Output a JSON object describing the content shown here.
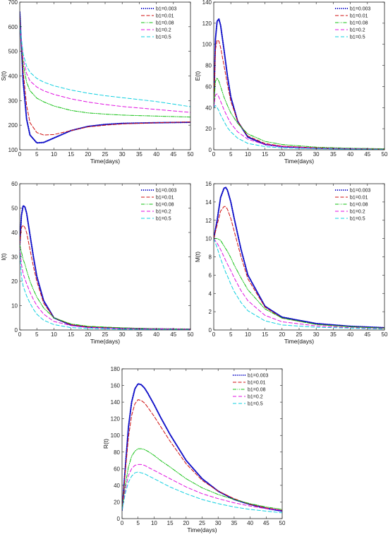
{
  "chart_data": [
    {
      "id": "S",
      "type": "line",
      "xlabel": "Time(days)",
      "ylabel": "S(t)",
      "xlim": [
        0,
        50
      ],
      "ylim": [
        100,
        700
      ],
      "xticks": [
        0,
        5,
        10,
        15,
        20,
        25,
        30,
        35,
        40,
        45,
        50
      ],
      "yticks": [
        100,
        200,
        300,
        400,
        500,
        600,
        700
      ],
      "legend_position": "top-right",
      "x": [
        0,
        1,
        2,
        3,
        5,
        7,
        10,
        15,
        20,
        25,
        30,
        40,
        50
      ],
      "series": [
        {
          "name": "b1=0.003",
          "color": "#1010c8",
          "dash": "1.2,1.6",
          "width": 2,
          "values": [
            660,
            380,
            225,
            160,
            128,
            130,
            148,
            178,
            195,
            203,
            207,
            210,
            212
          ]
        },
        {
          "name": "b1=0.01",
          "color": "#d01010",
          "dash": "5,2.5",
          "width": 1,
          "values": [
            640,
            420,
            280,
            210,
            170,
            160,
            162,
            178,
            193,
            200,
            205,
            210,
            213
          ]
        },
        {
          "name": "b1=0.08",
          "color": "#10c010",
          "dash": "5,1.5,1,1.5,1,1.5",
          "width": 1,
          "values": [
            630,
            450,
            375,
            340,
            310,
            295,
            278,
            260,
            250,
            245,
            241,
            237,
            233
          ]
        },
        {
          "name": "b1=0.2",
          "color": "#e010e0",
          "dash": "5,3",
          "width": 1,
          "values": [
            620,
            470,
            410,
            380,
            355,
            340,
            325,
            307,
            294,
            284,
            276,
            264,
            252
          ]
        },
        {
          "name": "b1=0.5",
          "color": "#10d0e0",
          "dash": "5,3",
          "width": 1,
          "values": [
            610,
            490,
            440,
            415,
            390,
            375,
            360,
            343,
            330,
            320,
            312,
            296,
            275
          ]
        }
      ]
    },
    {
      "id": "E",
      "type": "line",
      "xlabel": "Time(days)",
      "ylabel": "E(t)",
      "xlim": [
        0,
        50
      ],
      "ylim": [
        0,
        140
      ],
      "xticks": [
        0,
        5,
        10,
        15,
        20,
        25,
        30,
        35,
        40,
        45,
        50
      ],
      "yticks": [
        0,
        20,
        40,
        60,
        80,
        100,
        120,
        140
      ],
      "legend_position": "top-right",
      "x": [
        0,
        0.5,
        1,
        1.5,
        2,
        3,
        4,
        5,
        7,
        10,
        15,
        20,
        30,
        40,
        50
      ],
      "series": [
        {
          "name": "b1=0.003",
          "color": "#1010c8",
          "dash": "1.2,1.6",
          "width": 2,
          "values": [
            40,
            105,
            122,
            124,
            118,
            95,
            70,
            50,
            27,
            12,
            5,
            3,
            1.5,
            1,
            0.5
          ]
        },
        {
          "name": "b1=0.01",
          "color": "#d01010",
          "dash": "5,2.5",
          "width": 1,
          "values": [
            40,
            95,
            104,
            103,
            97,
            80,
            62,
            46,
            27,
            13,
            6,
            3.5,
            1.8,
            1,
            0.5
          ]
        },
        {
          "name": "b1=0.08",
          "color": "#10c010",
          "dash": "5,1.5,1,1.5,1,1.5",
          "width": 1,
          "values": [
            40,
            65,
            68,
            65,
            60,
            50,
            42,
            35,
            25,
            15,
            8,
            5,
            2.5,
            1.5,
            1
          ]
        },
        {
          "name": "b1=0.2",
          "color": "#e010e0",
          "dash": "5,3",
          "width": 1,
          "values": [
            40,
            52,
            53,
            50,
            46,
            38,
            31,
            25,
            17,
            10,
            5,
            3,
            1.5,
            1,
            0.5
          ]
        },
        {
          "name": "b1=0.5",
          "color": "#10d0e0",
          "dash": "5,3",
          "width": 1,
          "values": [
            40,
            42,
            40,
            37,
            33,
            27,
            21,
            17,
            11,
            6,
            3,
            1.8,
            1,
            0.5,
            0.3
          ]
        }
      ]
    },
    {
      "id": "I",
      "type": "line",
      "xlabel": "Time(days)",
      "ylabel": "I(t)",
      "xlim": [
        0,
        50
      ],
      "ylim": [
        0,
        60
      ],
      "xticks": [
        0,
        5,
        10,
        15,
        20,
        25,
        30,
        35,
        40,
        45,
        50
      ],
      "yticks": [
        0,
        10,
        20,
        30,
        40,
        50,
        60
      ],
      "legend_position": "top-right",
      "x": [
        0,
        0.5,
        1,
        1.5,
        2,
        3,
        4,
        5,
        7,
        10,
        15,
        20,
        30,
        40,
        50
      ],
      "series": [
        {
          "name": "b1=0.003",
          "color": "#1010c8",
          "dash": "1.2,1.6",
          "width": 2,
          "values": [
            35,
            47,
            51,
            50.5,
            48,
            39,
            30,
            22,
            12,
            5,
            2,
            1.2,
            0.7,
            0.4,
            0.3
          ]
        },
        {
          "name": "b1=0.01",
          "color": "#d01010",
          "dash": "5,2.5",
          "width": 1,
          "values": [
            35,
            42,
            43,
            42,
            40,
            33,
            26,
            20,
            11,
            5,
            2.2,
            1.3,
            0.8,
            0.5,
            0.3
          ]
        },
        {
          "name": "b1=0.08",
          "color": "#10c010",
          "dash": "5,1.5,1,1.5,1,1.5",
          "width": 1,
          "values": [
            35,
            32,
            29,
            27,
            24.5,
            20,
            16.5,
            13.5,
            9,
            5,
            2.5,
            1.5,
            0.9,
            0.5,
            0.4
          ]
        },
        {
          "name": "b1=0.2",
          "color": "#e010e0",
          "dash": "5,3",
          "width": 1,
          "values": [
            34,
            27,
            23,
            21,
            19,
            15.5,
            12.5,
            10,
            6.5,
            3.5,
            1.8,
            1,
            0.6,
            0.4,
            0.3
          ]
        },
        {
          "name": "b1=0.5",
          "color": "#10d0e0",
          "dash": "5,3",
          "width": 1,
          "values": [
            33,
            22,
            18,
            16,
            14,
            11,
            8.5,
            6.5,
            4,
            2.2,
            1,
            0.6,
            0.3,
            0.2,
            0.1
          ]
        }
      ]
    },
    {
      "id": "M",
      "type": "line",
      "xlabel": "Time(days)",
      "ylabel": "M(t)",
      "xlim": [
        0,
        50
      ],
      "ylim": [
        0,
        16
      ],
      "xticks": [
        0,
        5,
        10,
        15,
        20,
        25,
        30,
        35,
        40,
        45,
        50
      ],
      "yticks": [
        0,
        2,
        4,
        6,
        8,
        10,
        12,
        14,
        16
      ],
      "legend_position": "top-right",
      "x": [
        0,
        1,
        2,
        3,
        3.5,
        4,
        5,
        6,
        8,
        10,
        15,
        20,
        30,
        40,
        50
      ],
      "series": [
        {
          "name": "b1=0.003",
          "color": "#1010c8",
          "dash": "1.2,1.6",
          "width": 2,
          "values": [
            10,
            12,
            14.5,
            15.5,
            15.6,
            15.3,
            14,
            12.2,
            8.8,
            6,
            2.6,
            1.4,
            0.7,
            0.4,
            0.25
          ]
        },
        {
          "name": "b1=0.01",
          "color": "#d01010",
          "dash": "5,2.5",
          "width": 1,
          "values": [
            10,
            11.5,
            13,
            13.5,
            13.5,
            13.2,
            12.2,
            10.8,
            8,
            5.6,
            2.5,
            1.3,
            0.6,
            0.35,
            0.2
          ]
        },
        {
          "name": "b1=0.08",
          "color": "#10c010",
          "dash": "5,1.5,1,1.5,1,1.5",
          "width": 1,
          "values": [
            10,
            10,
            9.8,
            9.2,
            8.9,
            8.6,
            7.9,
            7.1,
            5.7,
            4.4,
            2.3,
            1.3,
            0.6,
            0.35,
            0.2
          ]
        },
        {
          "name": "b1=0.2",
          "color": "#e010e0",
          "dash": "5,3",
          "width": 1,
          "values": [
            10,
            9.5,
            8.8,
            8,
            7.6,
            7.2,
            6.5,
            5.7,
            4.3,
            3.2,
            1.6,
            0.9,
            0.45,
            0.25,
            0.15
          ]
        },
        {
          "name": "b1=0.5",
          "color": "#10d0e0",
          "dash": "5,3",
          "width": 1,
          "values": [
            10,
            9,
            7.8,
            6.8,
            6.3,
            5.9,
            5,
            4.2,
            3,
            2.1,
            1,
            0.55,
            0.3,
            0.2,
            0.1
          ]
        }
      ]
    },
    {
      "id": "R",
      "type": "line",
      "xlabel": "Time(days)",
      "ylabel": "R(t)",
      "xlim": [
        0,
        50
      ],
      "ylim": [
        0,
        180
      ],
      "xticks": [
        0,
        5,
        10,
        15,
        20,
        25,
        30,
        35,
        40,
        45,
        50
      ],
      "yticks": [
        0,
        20,
        40,
        60,
        80,
        100,
        120,
        140,
        160,
        180
      ],
      "legend_position": "top-right",
      "x": [
        0,
        1,
        2,
        3,
        4,
        5,
        6,
        7,
        8,
        10,
        12,
        15,
        20,
        25,
        30,
        35,
        40,
        45,
        50
      ],
      "series": [
        {
          "name": "b1=0.003",
          "color": "#1010c8",
          "dash": "1.2,1.6",
          "width": 2,
          "values": [
            10,
            60,
            110,
            140,
            156,
            162,
            161,
            157,
            151,
            137,
            122,
            101,
            70,
            48,
            33,
            23,
            17,
            12.5,
            9
          ]
        },
        {
          "name": "b1=0.01",
          "color": "#d01010",
          "dash": "5,2.5",
          "width": 1,
          "values": [
            10,
            55,
            98,
            124,
            138,
            143,
            142,
            139,
            134,
            123,
            111,
            93,
            66,
            46,
            33,
            24,
            17,
            13,
            10
          ]
        },
        {
          "name": "b1=0.08",
          "color": "#10c010",
          "dash": "5,1.5,1,1.5,1,1.5",
          "width": 1,
          "values": [
            10,
            40,
            62,
            75,
            81,
            84,
            84,
            83,
            81,
            76,
            70,
            62,
            48,
            37,
            29,
            23,
            18,
            14,
            11
          ]
        },
        {
          "name": "b1=0.2",
          "color": "#e010e0",
          "dash": "5,3",
          "width": 1,
          "values": [
            10,
            35,
            52,
            60,
            64,
            65,
            65,
            64,
            62,
            58,
            54,
            48,
            38,
            30,
            24,
            19,
            15,
            12,
            10
          ]
        },
        {
          "name": "b1=0.5",
          "color": "#10d0e0",
          "dash": "5,3",
          "width": 1,
          "values": [
            10,
            30,
            44,
            51,
            55,
            56,
            55,
            54,
            52,
            48,
            44,
            38,
            30,
            23,
            18,
            14,
            11,
            9,
            7
          ]
        }
      ]
    }
  ]
}
